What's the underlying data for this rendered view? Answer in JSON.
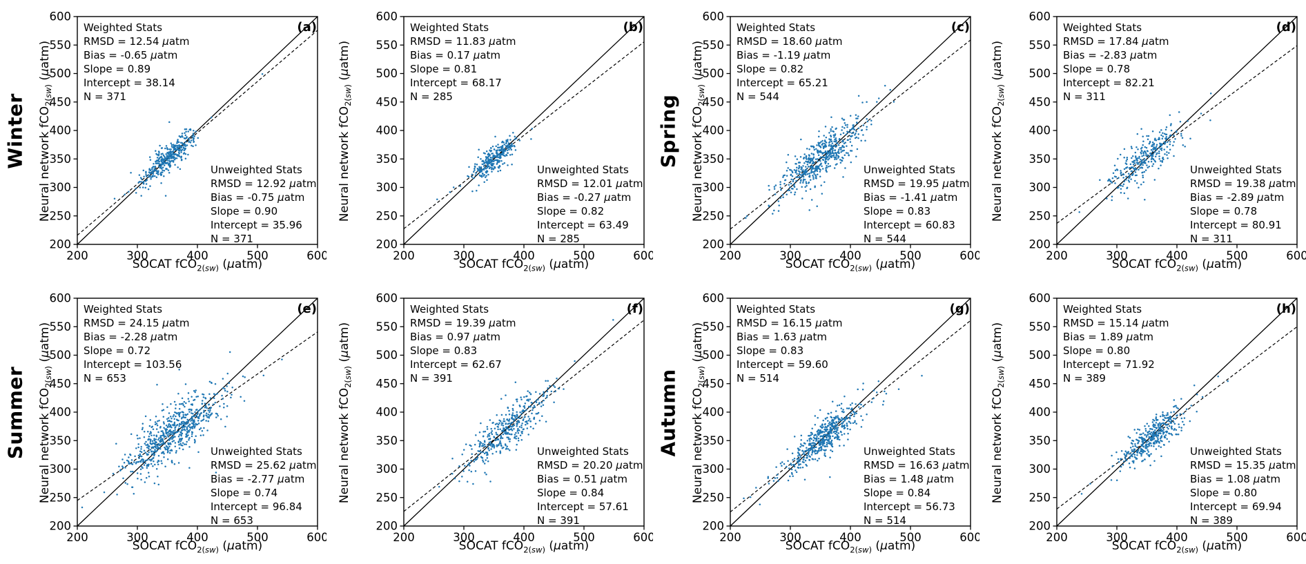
{
  "figure": {
    "background": "#ffffff",
    "marker_color": "#1f77b4",
    "line_color": "#000000",
    "xlim": [
      200,
      600
    ],
    "ylim": [
      200,
      600
    ],
    "xticks": [
      200,
      300,
      400,
      500,
      600
    ],
    "yticks": [
      200,
      250,
      300,
      350,
      400,
      450,
      500,
      550,
      600
    ],
    "x_axis_label": {
      "pre": "SOCAT fCO",
      "sub": "2(sw)",
      "post": " (μatm)"
    },
    "y_axis_label": {
      "pre": "Neural network fCO",
      "sub": "2(sw)",
      "post": " (μatm)"
    },
    "stats_labels": {
      "weighted_title": "Weighted Stats",
      "unweighted_title": "Unweighted Stats",
      "rmsd": "RMSD",
      "bias": "Bias",
      "slope": "Slope",
      "intercept": "Intercept",
      "n": "N",
      "eq": " = ",
      "unit": "μatm"
    }
  },
  "chart_data": [
    {
      "type": "scatter",
      "letter": "(a)",
      "row_label": "Winter",
      "weighted": {
        "rmsd": "12.54",
        "bias": "-0.65",
        "slope": "0.89",
        "intercept": "38.14",
        "n": "371"
      },
      "unweighted": {
        "rmsd": "12.92",
        "bias": "-0.75",
        "slope": "0.90",
        "intercept": "35.96",
        "n": "371"
      },
      "cloud": {
        "x_mean": 352,
        "x_sd": 22
      }
    },
    {
      "type": "scatter",
      "letter": "(b)",
      "row_label": null,
      "weighted": {
        "rmsd": "11.83",
        "bias": "0.17",
        "slope": "0.81",
        "intercept": "68.17",
        "n": "285"
      },
      "unweighted": {
        "rmsd": "12.01",
        "bias": "-0.27",
        "slope": "0.82",
        "intercept": "63.49",
        "n": "285"
      },
      "cloud": {
        "x_mean": 350,
        "x_sd": 19
      }
    },
    {
      "type": "scatter",
      "letter": "(c)",
      "row_label": "Spring",
      "weighted": {
        "rmsd": "18.60",
        "bias": "-1.19",
        "slope": "0.82",
        "intercept": "65.21",
        "n": "544"
      },
      "unweighted": {
        "rmsd": "19.95",
        "bias": "-1.41",
        "slope": "0.83",
        "intercept": "60.83",
        "n": "544"
      },
      "cloud": {
        "x_mean": 350,
        "x_sd": 34
      }
    },
    {
      "type": "scatter",
      "letter": "(d)",
      "row_label": null,
      "weighted": {
        "rmsd": "17.84",
        "bias": "-2.83",
        "slope": "0.78",
        "intercept": "82.21",
        "n": "311"
      },
      "unweighted": {
        "rmsd": "19.38",
        "bias": "-2.89",
        "slope": "0.78",
        "intercept": "80.91",
        "n": "311"
      },
      "cloud": {
        "x_mean": 346,
        "x_sd": 28
      }
    },
    {
      "type": "scatter",
      "letter": "(e)",
      "row_label": "Summer",
      "weighted": {
        "rmsd": "24.15",
        "bias": "-2.28",
        "slope": "0.72",
        "intercept": "103.56",
        "n": "653"
      },
      "unweighted": {
        "rmsd": "25.62",
        "bias": "-2.77",
        "slope": "0.74",
        "intercept": "96.84",
        "n": "653"
      },
      "cloud": {
        "x_mean": 362,
        "x_sd": 39
      }
    },
    {
      "type": "scatter",
      "letter": "(f)",
      "row_label": null,
      "weighted": {
        "rmsd": "19.39",
        "bias": "0.97",
        "slope": "0.83",
        "intercept": "62.67",
        "n": "391"
      },
      "unweighted": {
        "rmsd": "20.20",
        "bias": "0.51",
        "slope": "0.84",
        "intercept": "57.61",
        "n": "391"
      },
      "cloud": {
        "x_mean": 372,
        "x_sd": 35
      }
    },
    {
      "type": "scatter",
      "letter": "(g)",
      "row_label": "Autumn",
      "weighted": {
        "rmsd": "16.15",
        "bias": "1.63",
        "slope": "0.83",
        "intercept": "59.60",
        "n": "514"
      },
      "unweighted": {
        "rmsd": "16.63",
        "bias": "1.48",
        "slope": "0.84",
        "intercept": "56.73",
        "n": "514"
      },
      "cloud": {
        "x_mean": 358,
        "x_sd": 31
      }
    },
    {
      "type": "scatter",
      "letter": "(h)",
      "row_label": null,
      "weighted": {
        "rmsd": "15.14",
        "bias": "1.89",
        "slope": "0.80",
        "intercept": "71.92",
        "n": "389"
      },
      "unweighted": {
        "rmsd": "15.35",
        "bias": "1.08",
        "slope": "0.80",
        "intercept": "69.94",
        "n": "389"
      },
      "cloud": {
        "x_mean": 360,
        "x_sd": 26
      }
    }
  ]
}
